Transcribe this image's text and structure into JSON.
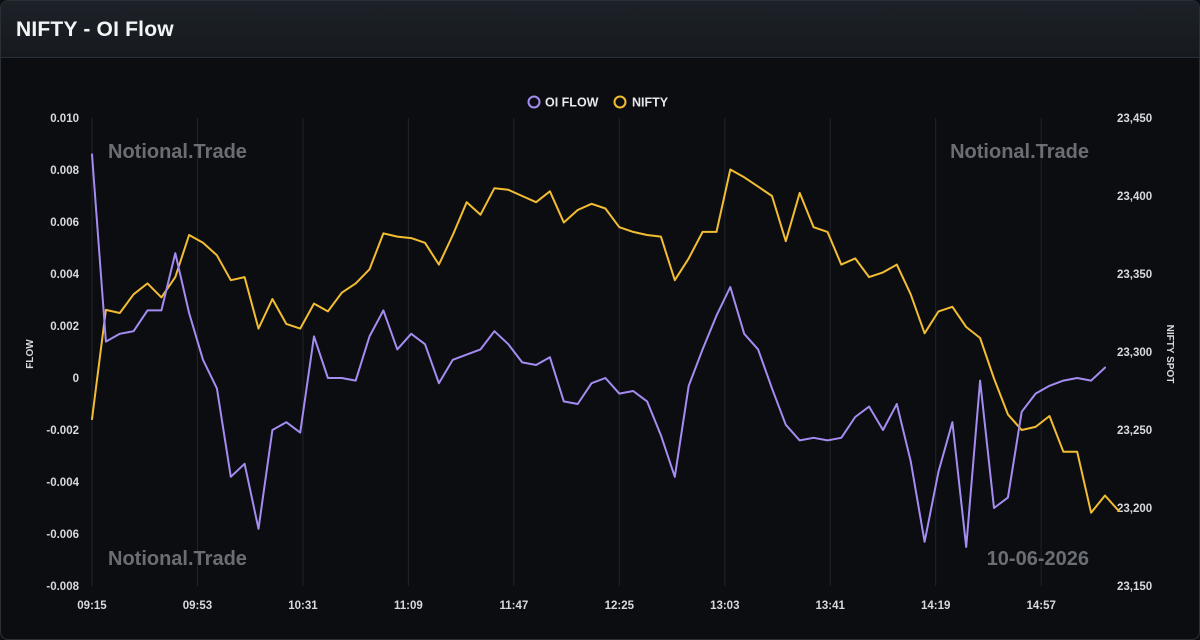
{
  "header": {
    "title": "NIFTY - OI Flow"
  },
  "watermarks": {
    "top_left": "Notional.Trade",
    "top_right": "Notional.Trade",
    "bottom_left": "Notional.Trade",
    "bottom_right": "10-06-2026"
  },
  "colors": {
    "oi_flow": "#a48cf0",
    "nifty": "#f2bd32",
    "background": "#0b0d11",
    "grid": "#20252c"
  },
  "chart_data": {
    "type": "line",
    "legend_position": "top-center",
    "grid": true,
    "x_tick_labels": [
      "09:15",
      "09:53",
      "10:31",
      "11:09",
      "11:47",
      "12:25",
      "13:03",
      "13:41",
      "14:19",
      "14:57"
    ],
    "x_tick_minutes_from_open": [
      0,
      38,
      76,
      114,
      152,
      190,
      228,
      266,
      304,
      342
    ],
    "x_step_minutes": 5,
    "y_left": {
      "label": "FLOW",
      "min": -0.008,
      "max": 0.01,
      "ticks": [
        0.01,
        0.008,
        0.006,
        0.004,
        0.002,
        0,
        -0.002,
        -0.004,
        -0.006,
        -0.008
      ],
      "tick_labels": [
        "0.010",
        "0.008",
        "0.006",
        "0.004",
        "0.002",
        "0",
        "-0.002",
        "-0.004",
        "-0.006",
        "-0.008"
      ]
    },
    "y_right": {
      "label": "NIFTY SPOT",
      "min": 23150,
      "max": 23450,
      "ticks": [
        23450,
        23400,
        23350,
        23300,
        23250,
        23200,
        23150
      ],
      "tick_labels": [
        "23,450",
        "23,400",
        "23,350",
        "23,300",
        "23,250",
        "23,200",
        "23,150"
      ]
    },
    "series": [
      {
        "name": "OI FLOW",
        "axis": "left",
        "values": [
          0.0086,
          0.0014,
          0.0017,
          0.0018,
          0.0026,
          0.0026,
          0.0048,
          0.0025,
          0.0007,
          -0.0004,
          -0.0038,
          -0.0033,
          -0.0058,
          -0.002,
          -0.0017,
          -0.0021,
          0.0016,
          0.0,
          0.0,
          -0.0001,
          0.0016,
          0.0026,
          0.0011,
          0.0017,
          0.0013,
          -0.0002,
          0.0007,
          0.0009,
          0.0011,
          0.0018,
          0.0013,
          0.0006,
          0.0005,
          0.0008,
          -0.0009,
          -0.001,
          -0.0002,
          0.0,
          -0.0006,
          -0.0005,
          -0.0009,
          -0.0022,
          -0.0038,
          -0.0003,
          0.0011,
          0.0024,
          0.0035,
          0.0017,
          0.0011,
          -0.0004,
          -0.0018,
          -0.0024,
          -0.0023,
          -0.0024,
          -0.0023,
          -0.0015,
          -0.0011,
          -0.002,
          -0.001,
          -0.0032,
          -0.0063,
          -0.0036,
          -0.0017,
          -0.0065,
          -0.0001,
          -0.005,
          -0.0046,
          -0.0013,
          -0.0006,
          -0.0003,
          -0.0001,
          0.0,
          -0.0001,
          0.0004
        ]
      },
      {
        "name": "NIFTY",
        "axis": "right",
        "values": [
          23257,
          23327,
          23325,
          23337,
          23344,
          23335,
          23348,
          23375,
          23370,
          23362,
          23346,
          23348,
          23315,
          23334,
          23318,
          23315,
          23331,
          23326,
          23338,
          23344,
          23353,
          23376,
          23374,
          23373,
          23370,
          23356,
          23375,
          23396,
          23388,
          23405,
          23404,
          23400,
          23396,
          23403,
          23383,
          23391,
          23395,
          23392,
          23380,
          23377,
          23375,
          23374,
          23346,
          23360,
          23377,
          23377,
          23417,
          23412,
          23406,
          23400,
          23371,
          23402,
          23380,
          23377,
          23356,
          23360,
          23348,
          23351,
          23356,
          23337,
          23312,
          23326,
          23329,
          23316,
          23309,
          23283,
          23260,
          23250,
          23252,
          23259,
          23236,
          23236,
          23197,
          23208,
          23198
        ]
      }
    ]
  }
}
